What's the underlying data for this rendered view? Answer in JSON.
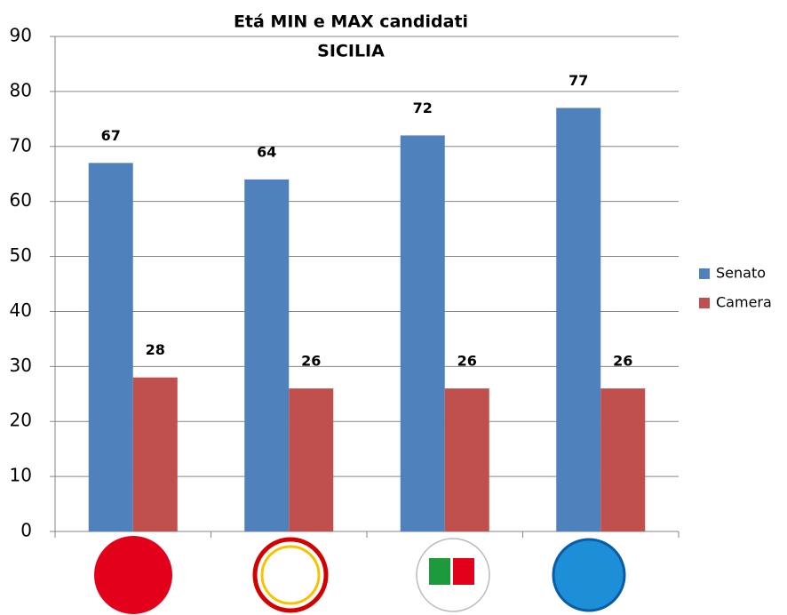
{
  "chart_data": {
    "type": "bar",
    "title": "Etá MIN e MAX candidati",
    "subtitle": "SICILIA",
    "categories": [
      null,
      null,
      null,
      null
    ],
    "series": [
      {
        "name": "Senato",
        "color": "#4f81bd",
        "values": [
          67,
          64,
          72,
          77
        ]
      },
      {
        "name": "Camera",
        "color": "#c0504d",
        "values": [
          28,
          26,
          26,
          26
        ]
      }
    ],
    "ylim": [
      0,
      90
    ],
    "yticks": [
      0,
      10,
      20,
      30,
      40,
      50,
      60,
      70,
      80,
      90
    ],
    "grid": true,
    "legend": "right"
  }
}
